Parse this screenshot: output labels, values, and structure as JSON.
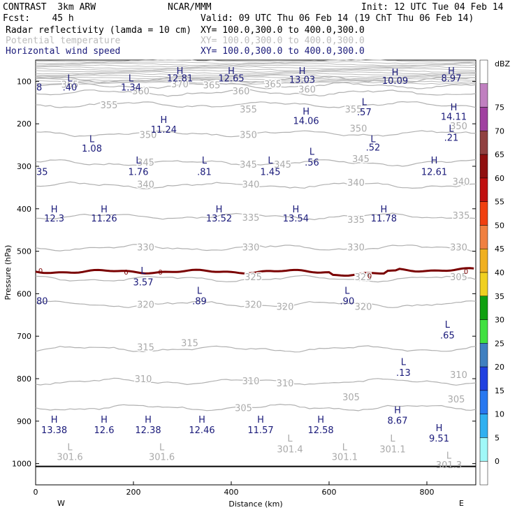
{
  "header": {
    "model": "CONTRAST  3km ARW",
    "center": "NCAR/MMM",
    "init": "Init: 12 UTC Tue 04 Feb 14",
    "fcst": "Fcst:    45 h",
    "valid": "Valid: 09 UTC Thu 06 Feb 14 (19 ChT Thu 06 Feb 14)",
    "field1": "Radar reflectivity (lamda = 10 cm)",
    "field1_xy": "XY= 100.0,300.0 to 400.0,300.0",
    "field2": "Potential temperature",
    "field2_xy": "XY= 100.0,300.0 to 400.0,300.0",
    "field3": "Horizontal wind speed",
    "field3_xy": "XY= 100.0,300.0 to 400.0,300.0"
  },
  "chart_data": {
    "type": "line",
    "xlabel": "Distance (km)",
    "ylabel": "Pressure (hPa)",
    "xlim": [
      0,
      900
    ],
    "ylim": [
      1050,
      50
    ],
    "x_ticks": [
      0,
      200,
      400,
      600,
      800
    ],
    "y_ticks": [
      100,
      200,
      300,
      400,
      500,
      600,
      700,
      800,
      900,
      1000
    ],
    "x_end_labels": {
      "left": "W",
      "right": "E"
    },
    "colorbar": {
      "unit": "dBZ",
      "levels": [
        0,
        5,
        10,
        15,
        20,
        25,
        30,
        35,
        40,
        45,
        50,
        55,
        60,
        65,
        70,
        75
      ],
      "colors": [
        "#ffffff",
        "#a0f8f8",
        "#30b0f0",
        "#2878f0",
        "#2040e0",
        "#4080c0",
        "#40e040",
        "#10a010",
        "#f0d020",
        "#f0b020",
        "#f08040",
        "#f04010",
        "#c01010",
        "#901010",
        "#904040",
        "#a040a0",
        "#c080c0",
        "#ffffff"
      ]
    },
    "theta_contours": [
      {
        "label": "305",
        "p": 868
      },
      {
        "label": "310",
        "p": 807
      },
      {
        "label": "315",
        "p": 730
      },
      {
        "label": "320",
        "p": 625
      },
      {
        "label": "325",
        "p": 565
      },
      {
        "label": "330",
        "p": 492
      },
      {
        "label": "335",
        "p": 418
      },
      {
        "label": "340",
        "p": 345
      },
      {
        "label": "345",
        "p": 292
      },
      {
        "label": "350",
        "p": 223
      },
      {
        "label": "355",
        "p": 155
      },
      {
        "label": "360",
        "p": 127
      },
      {
        "label": "365",
        "p": 110
      },
      {
        "label": "370",
        "p": 96
      }
    ],
    "theta_labels": [
      {
        "text": "365",
        "x": 70,
        "p": 107
      },
      {
        "text": "370",
        "x": 295,
        "p": 106
      },
      {
        "text": "365",
        "x": 360,
        "p": 108
      },
      {
        "text": "365",
        "x": 485,
        "p": 106
      },
      {
        "text": "360",
        "x": 215,
        "p": 122
      },
      {
        "text": "360",
        "x": 420,
        "p": 122
      },
      {
        "text": "360",
        "x": 555,
        "p": 118
      },
      {
        "text": "355",
        "x": 150,
        "p": 155
      },
      {
        "text": "355",
        "x": 435,
        "p": 165
      },
      {
        "text": "355",
        "x": 650,
        "p": 165
      },
      {
        "text": "350",
        "x": 230,
        "p": 225
      },
      {
        "text": "350",
        "x": 435,
        "p": 225
      },
      {
        "text": "350",
        "x": 660,
        "p": 210
      },
      {
        "text": "350",
        "x": 865,
        "p": 205
      },
      {
        "text": "345",
        "x": 225,
        "p": 290
      },
      {
        "text": "345",
        "x": 435,
        "p": 295
      },
      {
        "text": "345",
        "x": 505,
        "p": 295
      },
      {
        "text": "345",
        "x": 665,
        "p": 282
      },
      {
        "text": "340",
        "x": 225,
        "p": 342
      },
      {
        "text": "340",
        "x": 440,
        "p": 342
      },
      {
        "text": "340",
        "x": 655,
        "p": 338
      },
      {
        "text": "340",
        "x": 870,
        "p": 335
      },
      {
        "text": "335",
        "x": 440,
        "p": 420
      },
      {
        "text": "335",
        "x": 655,
        "p": 425
      },
      {
        "text": "335",
        "x": 870,
        "p": 415
      },
      {
        "text": "330",
        "x": 225,
        "p": 490
      },
      {
        "text": "330",
        "x": 440,
        "p": 490
      },
      {
        "text": "330",
        "x": 655,
        "p": 490
      },
      {
        "text": "330",
        "x": 865,
        "p": 490
      },
      {
        "text": "325",
        "x": 445,
        "p": 560
      },
      {
        "text": "325",
        "x": 670,
        "p": 560
      },
      {
        "text": "305",
        "x": 865,
        "p": 560
      },
      {
        "text": "320",
        "x": 225,
        "p": 625
      },
      {
        "text": "320",
        "x": 445,
        "p": 625
      },
      {
        "text": "320",
        "x": 510,
        "p": 630
      },
      {
        "text": "320",
        "x": 670,
        "p": 630
      },
      {
        "text": "315",
        "x": 225,
        "p": 725
      },
      {
        "text": "315",
        "x": 315,
        "p": 715
      },
      {
        "text": "310",
        "x": 220,
        "p": 800
      },
      {
        "text": "310",
        "x": 440,
        "p": 805
      },
      {
        "text": "310",
        "x": 510,
        "p": 810
      },
      {
        "text": "310",
        "x": 865,
        "p": 790
      },
      {
        "text": "305",
        "x": 425,
        "p": 868
      },
      {
        "text": "305",
        "x": 645,
        "p": 843
      },
      {
        "text": "305",
        "x": 860,
        "p": 848
      }
    ],
    "wind_extrema": [
      {
        "kind": "L",
        "value": ".40",
        "x": 70,
        "p": 92,
        "lp": 113
      },
      {
        "kind": "L",
        "value": "1.34",
        "x": 195,
        "p": 92,
        "lp": 113
      },
      {
        "kind": "H",
        "value": "12.81",
        "x": 295,
        "p": 75,
        "lp": 92
      },
      {
        "kind": "H",
        "value": "12.65",
        "x": 400,
        "p": 75,
        "lp": 92
      },
      {
        "kind": "H",
        "value": "13.03",
        "x": 545,
        "p": 75,
        "lp": 95
      },
      {
        "kind": "H",
        "value": "10.09",
        "x": 735,
        "p": 78,
        "lp": 98
      },
      {
        "kind": "H",
        "value": "8.97",
        "x": 850,
        "p": 75,
        "lp": 92
      },
      {
        "kind": "L",
        "value": ".57",
        "x": 672,
        "p": 148,
        "lp": 172
      },
      {
        "kind": "H",
        "value": "14.06",
        "x": 553,
        "p": 170,
        "lp": 192
      },
      {
        "kind": "H",
        "value": "14.11",
        "x": 855,
        "p": 160,
        "lp": 182
      },
      {
        "kind": "H",
        "value": "11.24",
        "x": 262,
        "p": 190,
        "lp": 213
      },
      {
        "kind": "L",
        "value": "1.08",
        "x": 115,
        "p": 235,
        "lp": 257
      },
      {
        "kind": "L",
        "value": ".52",
        "x": 690,
        "p": 235,
        "lp": 255
      },
      {
        "kind": "L",
        "value": ".21",
        "x": 850,
        "p": 210,
        "lp": 232
      },
      {
        "kind": "L",
        "value": "1.76",
        "x": 210,
        "p": 285,
        "lp": 312
      },
      {
        "kind": "L",
        "value": ".81",
        "x": 345,
        "p": 285,
        "lp": 312
      },
      {
        "kind": "L",
        "value": "1.45",
        "x": 480,
        "p": 285,
        "lp": 312
      },
      {
        "kind": "L",
        "value": ".56",
        "x": 565,
        "p": 265,
        "lp": 290
      },
      {
        "kind": "H",
        "value": "12.61",
        "x": 815,
        "p": 285,
        "lp": 312
      },
      {
        "kind": "H",
        "value": "12.3",
        "x": 38,
        "p": 400,
        "lp": 422
      },
      {
        "kind": "H",
        "value": "11.26",
        "x": 140,
        "p": 400,
        "lp": 422
      },
      {
        "kind": "H",
        "value": "13.52",
        "x": 375,
        "p": 400,
        "lp": 422
      },
      {
        "kind": "H",
        "value": "13.54",
        "x": 532,
        "p": 400,
        "lp": 422
      },
      {
        "kind": "H",
        "value": "11.78",
        "x": 712,
        "p": 400,
        "lp": 422
      },
      {
        "kind": "L",
        "value": "3.57",
        "x": 220,
        "p": 545,
        "lp": 572
      },
      {
        "kind": "L",
        "value": ".89",
        "x": 335,
        "p": 592,
        "lp": 617
      },
      {
        "kind": "L",
        "value": ".90",
        "x": 637,
        "p": 592,
        "lp": 617
      },
      {
        "kind": "L",
        "value": ".65",
        "x": 842,
        "p": 672,
        "lp": 697
      },
      {
        "kind": "L",
        "value": ".13",
        "x": 752,
        "p": 760,
        "lp": 785
      },
      {
        "kind": "H",
        "value": "13.38",
        "x": 38,
        "p": 895,
        "lp": 920
      },
      {
        "kind": "H",
        "value": "12.6",
        "x": 140,
        "p": 895,
        "lp": 920
      },
      {
        "kind": "H",
        "value": "12.38",
        "x": 230,
        "p": 895,
        "lp": 920
      },
      {
        "kind": "H",
        "value": "12.46",
        "x": 340,
        "p": 895,
        "lp": 920
      },
      {
        "kind": "H",
        "value": "11.57",
        "x": 460,
        "p": 895,
        "lp": 920
      },
      {
        "kind": "H",
        "value": "12.58",
        "x": 583,
        "p": 895,
        "lp": 920
      },
      {
        "kind": "H",
        "value": "8.67",
        "x": 740,
        "p": 873,
        "lp": 898
      },
      {
        "kind": "H",
        "value": "9.51",
        "x": 825,
        "p": 915,
        "lp": 940
      }
    ],
    "theta_extrema": [
      {
        "kind": "L",
        "value": "301.6",
        "x": 70,
        "p": 960,
        "lp": 983
      },
      {
        "kind": "L",
        "value": "301.6",
        "x": 258,
        "p": 960,
        "lp": 983
      },
      {
        "kind": "L",
        "value": "301.4",
        "x": 520,
        "p": 940,
        "lp": 965
      },
      {
        "kind": "L",
        "value": "301.1",
        "x": 632,
        "p": 960,
        "lp": 983
      },
      {
        "kind": "L",
        "value": "301.1",
        "x": 730,
        "p": 940,
        "lp": 965
      },
      {
        "kind": "L",
        "value": "301.3",
        "x": 845,
        "p": 980,
        "lp": 1002
      }
    ],
    "zero_line_labels": [
      {
        "text": "0",
        "x": 10,
        "p": 545
      },
      {
        "text": "0",
        "x": 185,
        "p": 548
      },
      {
        "text": "0",
        "x": 255,
        "p": 548
      },
      {
        "text": "0",
        "x": 683,
        "p": 557
      },
      {
        "text": "0",
        "x": 880,
        "p": 547
      }
    ],
    "edge_labels": [
      {
        "text": "8",
        "x": 0,
        "p": 113
      },
      {
        "text": "35",
        "x": 0,
        "p": 312
      },
      {
        "text": "80",
        "x": 0,
        "p": 617
      }
    ]
  }
}
